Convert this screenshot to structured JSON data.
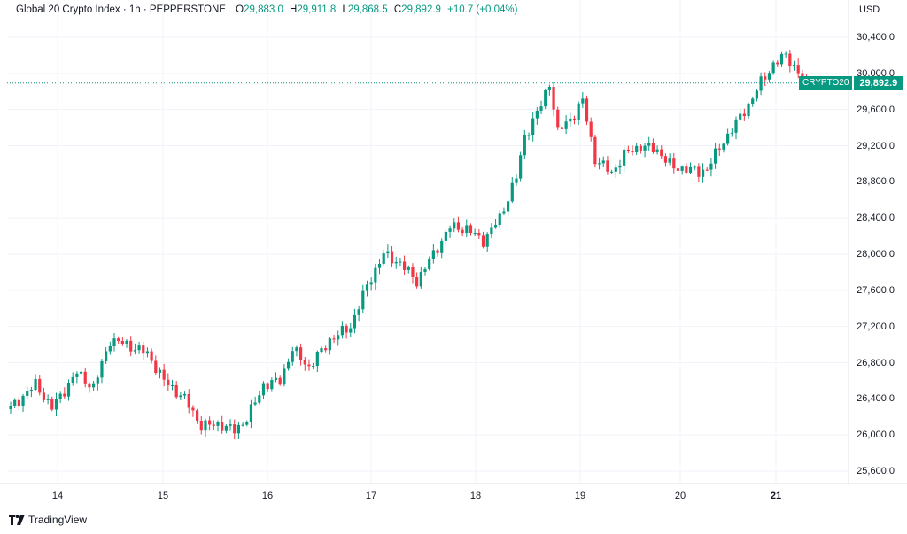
{
  "legend": {
    "symbol": "Global 20 Crypto Index · 1h · PEPPERSTONE",
    "o_label": "O",
    "o": "29,883.0",
    "h_label": "H",
    "h": "29,911.8",
    "l_label": "L",
    "l": "29,868.5",
    "c_label": "C",
    "c": "29,892.9",
    "change": "+10.7 (+0.04%)"
  },
  "currency": "USD",
  "last_price_badge": {
    "ticker": "CRYPTO20",
    "price": "29,892.9"
  },
  "brand": "TradingView",
  "colors": {
    "up": "#089981",
    "down": "#f23645",
    "grid": "#f0f3fa",
    "last_line": "#089981"
  },
  "chart_data": {
    "type": "candlestick",
    "title": "Global 20 Crypto Index · 1h · PEPPERSTONE",
    "timeframe": "1h",
    "x_ticks": [
      "14",
      "15",
      "16",
      "17",
      "18",
      "19",
      "20",
      "21"
    ],
    "y_ticks": [
      "25,600.0",
      "26,000.0",
      "26,400.0",
      "26,800.0",
      "27,200.0",
      "27,600.0",
      "28,000.0",
      "28,400.0",
      "28,800.0",
      "29,200.0",
      "29,600.0",
      "30,000.0",
      "30,400.0"
    ],
    "ylim": [
      25500,
      30550
    ],
    "last_price": 29892.9,
    "close_path": [
      [
        0,
        26300
      ],
      [
        6,
        26560
      ],
      [
        10,
        26300
      ],
      [
        16,
        26690
      ],
      [
        20,
        26520
      ],
      [
        24,
        27050
      ],
      [
        28,
        27000
      ],
      [
        33,
        26900
      ],
      [
        37,
        26600
      ],
      [
        42,
        26400
      ],
      [
        46,
        26100
      ],
      [
        50,
        26120
      ],
      [
        54,
        26050
      ],
      [
        57,
        26180
      ],
      [
        61,
        26550
      ],
      [
        65,
        26600
      ],
      [
        68,
        26950
      ],
      [
        72,
        26750
      ],
      [
        77,
        27050
      ],
      [
        82,
        27200
      ],
      [
        86,
        27650
      ],
      [
        90,
        28000
      ],
      [
        94,
        27900
      ],
      [
        98,
        27700
      ],
      [
        102,
        28000
      ],
      [
        106,
        28300
      ],
      [
        110,
        28280
      ],
      [
        114,
        28150
      ],
      [
        118,
        28400
      ],
      [
        122,
        28850
      ],
      [
        124,
        29300
      ],
      [
        128,
        29650
      ],
      [
        130,
        29900
      ],
      [
        132,
        29350
      ],
      [
        136,
        29550
      ],
      [
        138,
        29700
      ],
      [
        141,
        29050
      ],
      [
        145,
        28900
      ],
      [
        148,
        29100
      ],
      [
        152,
        29200
      ],
      [
        156,
        29150
      ],
      [
        160,
        28950
      ],
      [
        163,
        28950
      ],
      [
        166,
        28900
      ],
      [
        168,
        28950
      ],
      [
        172,
        29250
      ],
      [
        175,
        29450
      ],
      [
        178,
        29650
      ],
      [
        181,
        29900
      ],
      [
        184,
        30100
      ],
      [
        187,
        30200
      ],
      [
        191,
        29950
      ],
      [
        192,
        29893
      ]
    ]
  }
}
